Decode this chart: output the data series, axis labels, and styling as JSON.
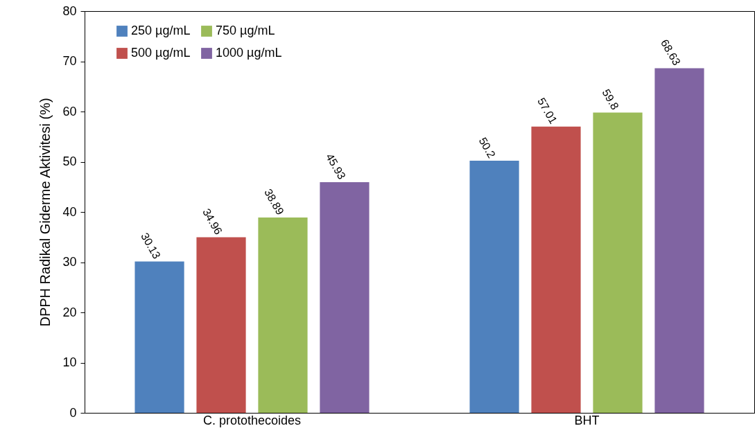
{
  "chart_data": {
    "type": "bar",
    "ylabel": "DPPH Radikal Giderme Aktivitesi (%)",
    "categories": [
      "C. protothecoides",
      "BHT"
    ],
    "series": [
      {
        "name": "250 µg/mL",
        "color": "#4f81bd",
        "values": [
          30.13,
          50.2
        ]
      },
      {
        "name": "500 µg/mL",
        "color": "#c0504d",
        "values": [
          34.96,
          57.01
        ]
      },
      {
        "name": "750 µg/mL",
        "color": "#9bbb59",
        "values": [
          38.89,
          59.8
        ]
      },
      {
        "name": "1000 µg/mL",
        "color": "#8064a2",
        "values": [
          45.93,
          68.63
        ]
      }
    ],
    "ylim": [
      0,
      80
    ],
    "yticks": [
      0,
      10,
      20,
      30,
      40,
      50,
      60,
      70,
      80
    ],
    "grid": false,
    "legend": "top left",
    "data_labels": true
  }
}
